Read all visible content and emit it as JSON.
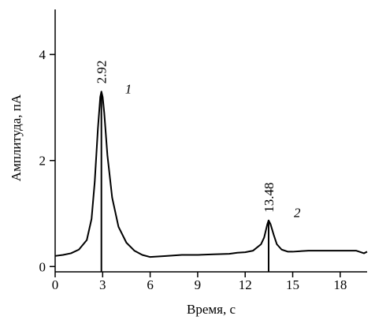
{
  "chart_data": {
    "type": "line",
    "x_label": "Время, с",
    "y_label": "Амплитуда, пА",
    "xlim": [
      0,
      19.7
    ],
    "xticks": [
      0,
      3,
      6,
      9,
      12,
      15,
      18
    ],
    "ylim": [
      -0.1,
      4.85
    ],
    "yticks": [
      0,
      2,
      4
    ],
    "grid": false,
    "series": [
      {
        "color": "#000000",
        "x": [
          0,
          0.5,
          1,
          1.5,
          2,
          2.3,
          2.5,
          2.7,
          2.85,
          2.92,
          3.0,
          3.1,
          3.3,
          3.6,
          4.0,
          4.5,
          5,
          5.5,
          6,
          7,
          8,
          9,
          10,
          11,
          11.5,
          12,
          12.5,
          13,
          13.2,
          13.4,
          13.48,
          13.6,
          13.8,
          14,
          14.3,
          14.7,
          15,
          16,
          17,
          18,
          19,
          19.5,
          19.7
        ],
        "values": [
          0.2,
          0.22,
          0.25,
          0.32,
          0.5,
          0.9,
          1.6,
          2.6,
          3.2,
          3.3,
          3.2,
          2.9,
          2.1,
          1.3,
          0.75,
          0.45,
          0.3,
          0.22,
          0.18,
          0.2,
          0.22,
          0.22,
          0.23,
          0.24,
          0.26,
          0.27,
          0.3,
          0.42,
          0.55,
          0.8,
          0.87,
          0.8,
          0.6,
          0.42,
          0.32,
          0.28,
          0.28,
          0.3,
          0.3,
          0.3,
          0.3,
          0.25,
          0.28
        ]
      }
    ],
    "peaks": [
      {
        "time": 2.92,
        "height": 3.3,
        "number": "1"
      },
      {
        "time": 13.48,
        "height": 0.87,
        "number": "2"
      }
    ]
  }
}
